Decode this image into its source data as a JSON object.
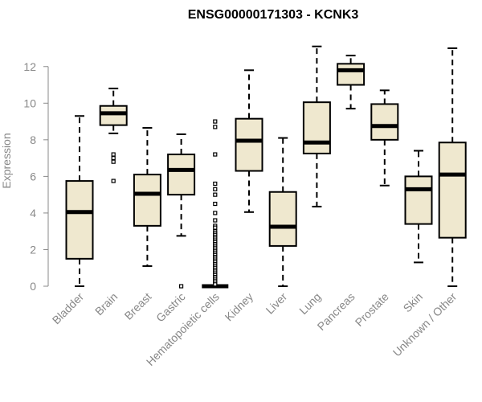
{
  "chart_data": {
    "type": "boxplot",
    "title": "ENSG00000171303 - KCNK3",
    "xlabel": "",
    "ylabel": "Expression",
    "ylim": [
      0,
      13
    ],
    "yticks": [
      0,
      2,
      4,
      6,
      8,
      10,
      12
    ],
    "box_fill": "#efe8cf",
    "box_stroke": "#000000",
    "axis_color": "#888888",
    "categories": [
      "Bladder",
      "Brain",
      "Breast",
      "Gastric",
      "Hematopoietic cells",
      "Kidney",
      "Liver",
      "Lung",
      "Pancreas",
      "Prostate",
      "Skin",
      "Unknown / Other"
    ],
    "boxes": [
      {
        "category": "Bladder",
        "min": 0.0,
        "q1": 1.5,
        "median": 4.05,
        "q3": 5.75,
        "max": 9.3,
        "outliers": []
      },
      {
        "category": "Brain",
        "min": 8.35,
        "q1": 8.8,
        "median": 9.45,
        "q3": 9.85,
        "max": 10.8,
        "outliers": [
          7.2,
          7.0,
          6.8,
          5.75
        ]
      },
      {
        "category": "Breast",
        "min": 1.1,
        "q1": 3.3,
        "median": 5.05,
        "q3": 6.1,
        "max": 8.65,
        "outliers": []
      },
      {
        "category": "Gastric",
        "min": 2.75,
        "q1": 5.0,
        "median": 6.35,
        "q3": 7.2,
        "max": 8.3,
        "outliers": [
          0.0
        ]
      },
      {
        "category": "Hematopoietic cells",
        "min": 0.0,
        "q1": 0.0,
        "median": 0.0,
        "q3": 0.0,
        "max": 0.0,
        "outliers": [
          9.0,
          8.7,
          7.2,
          5.6,
          5.3,
          5.0,
          4.5,
          4.0,
          3.6,
          3.3,
          3.2,
          3.0,
          2.9,
          2.8,
          2.7,
          2.6,
          2.5,
          2.4,
          2.3,
          2.2,
          2.1,
          2.0,
          1.9,
          1.8,
          1.7,
          1.6,
          1.5,
          1.4,
          1.3,
          1.2,
          1.1,
          1.0,
          0.9,
          0.8,
          0.7,
          0.6,
          0.5,
          0.4,
          0.3,
          0.2,
          0.1
        ]
      },
      {
        "category": "Kidney",
        "min": 4.05,
        "q1": 6.3,
        "median": 7.95,
        "q3": 9.15,
        "max": 11.8,
        "outliers": []
      },
      {
        "category": "Liver",
        "min": 0.0,
        "q1": 2.2,
        "median": 3.25,
        "q3": 5.15,
        "max": 8.1,
        "outliers": []
      },
      {
        "category": "Lung",
        "min": 4.35,
        "q1": 7.25,
        "median": 7.85,
        "q3": 10.05,
        "max": 13.1,
        "outliers": []
      },
      {
        "category": "Pancreas",
        "min": 9.7,
        "q1": 11.0,
        "median": 11.8,
        "q3": 12.15,
        "max": 12.6,
        "outliers": []
      },
      {
        "category": "Prostate",
        "min": 5.5,
        "q1": 8.0,
        "median": 8.75,
        "q3": 9.95,
        "max": 10.7,
        "outliers": []
      },
      {
        "category": "Skin",
        "min": 1.3,
        "q1": 3.4,
        "median": 5.3,
        "q3": 6.0,
        "max": 7.4,
        "outliers": []
      },
      {
        "category": "Unknown / Other",
        "min": 0.0,
        "q1": 2.65,
        "median": 6.1,
        "q3": 7.85,
        "max": 13.0,
        "outliers": []
      }
    ]
  }
}
